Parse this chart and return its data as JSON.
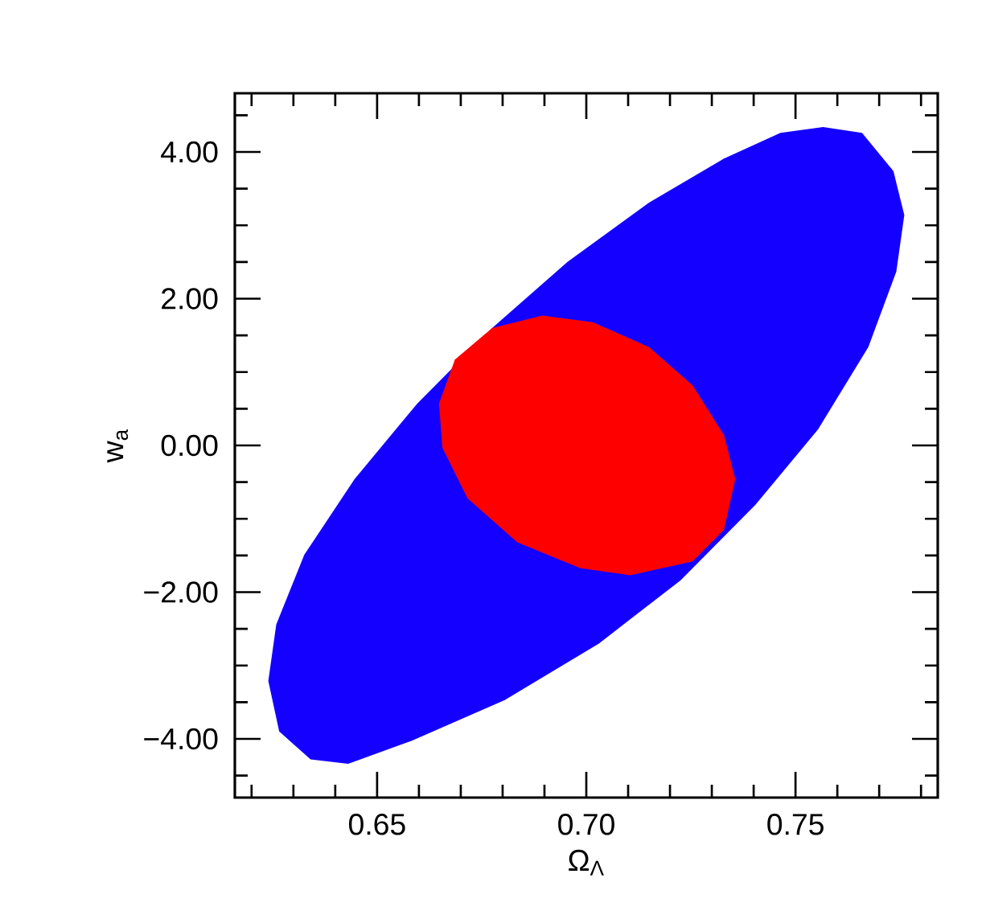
{
  "chart_data": {
    "type": "area",
    "xlabel": "Ω$_{Λ}$",
    "ylabel": "w$_{a}$",
    "xlim": [
      0.616,
      0.784
    ],
    "ylim": [
      -4.8,
      4.8
    ],
    "xticks": [
      {
        "value": 0.62,
        "label": null
      },
      {
        "value": 0.63,
        "label": null
      },
      {
        "value": 0.64,
        "label": null
      },
      {
        "value": 0.65,
        "label": "0.65"
      },
      {
        "value": 0.66,
        "label": null
      },
      {
        "value": 0.67,
        "label": null
      },
      {
        "value": 0.68,
        "label": null
      },
      {
        "value": 0.69,
        "label": null
      },
      {
        "value": 0.7,
        "label": "0.70"
      },
      {
        "value": 0.71,
        "label": null
      },
      {
        "value": 0.72,
        "label": null
      },
      {
        "value": 0.73,
        "label": null
      },
      {
        "value": 0.74,
        "label": null
      },
      {
        "value": 0.75,
        "label": "0.75"
      },
      {
        "value": 0.76,
        "label": null
      },
      {
        "value": 0.77,
        "label": null
      },
      {
        "value": 0.78,
        "label": null
      }
    ],
    "yticks": [
      {
        "value": -4.5,
        "label": null
      },
      {
        "value": -4,
        "label": "−4.00"
      },
      {
        "value": -3.5,
        "label": null
      },
      {
        "value": -3,
        "label": null
      },
      {
        "value": -2.5,
        "label": null
      },
      {
        "value": -2,
        "label": "−2.00"
      },
      {
        "value": -1.5,
        "label": null
      },
      {
        "value": -1,
        "label": null
      },
      {
        "value": -0.5,
        "label": null
      },
      {
        "value": 0,
        "label": "0.00"
      },
      {
        "value": 0.5,
        "label": null
      },
      {
        "value": 1,
        "label": null
      },
      {
        "value": 1.5,
        "label": null
      },
      {
        "value": 2,
        "label": "2.00"
      },
      {
        "value": 2.5,
        "label": null
      },
      {
        "value": 3,
        "label": null
      },
      {
        "value": 3.5,
        "label": null
      },
      {
        "value": 4,
        "label": "4.00"
      },
      {
        "value": 4.5,
        "label": null
      }
    ],
    "series": [
      {
        "color": "#1400ff",
        "x": [
          0.7566,
          0.7659,
          0.7734,
          0.776,
          0.7741,
          0.7674,
          0.7554,
          0.7404,
          0.7225,
          0.703,
          0.6805,
          0.6581,
          0.6431,
          0.6341,
          0.6266,
          0.624,
          0.6259,
          0.6326,
          0.6446,
          0.6596,
          0.6775,
          0.6955,
          0.715,
          0.7329,
          0.7464
        ],
        "values": [
          4.34,
          4.26,
          3.74,
          3.14,
          2.37,
          1.34,
          0.22,
          -0.81,
          -1.84,
          -2.7,
          -3.47,
          -4.03,
          -4.34,
          -4.28,
          -3.9,
          -3.21,
          -2.44,
          -1.49,
          -0.46,
          0.57,
          1.6,
          2.5,
          3.31,
          3.91,
          4.26
        ]
      },
      {
        "color": "#ff0000",
        "x": [
          0.6895,
          0.7015,
          0.715,
          0.7254,
          0.7329,
          0.7356,
          0.7329,
          0.7254,
          0.7105,
          0.6985,
          0.6835,
          0.6716,
          0.6656,
          0.6648,
          0.6686,
          0.6775
        ],
        "values": [
          1.77,
          1.68,
          1.34,
          0.82,
          0.14,
          -0.46,
          -1.15,
          -1.58,
          -1.77,
          -1.67,
          -1.32,
          -0.72,
          -0.03,
          0.57,
          1.17,
          1.6
        ]
      }
    ]
  }
}
